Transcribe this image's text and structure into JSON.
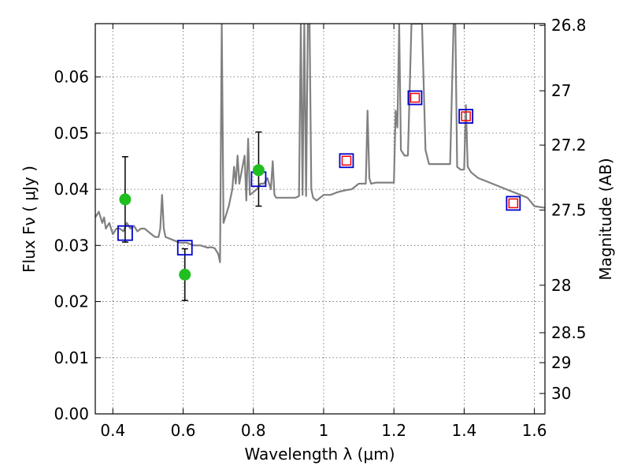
{
  "chart_data": {
    "type": "line",
    "xlabel": "Wavelength  λ (μm)",
    "ylabel": "Flux  Fν  ( μJy )",
    "y2label": "Magnitude (AB)",
    "xlim": [
      0.35,
      1.63
    ],
    "ylim": [
      0.0,
      0.0695
    ],
    "grid": true,
    "x_ticks": [
      0.4,
      0.6,
      0.8,
      1.0,
      1.2,
      1.4,
      1.6
    ],
    "x_tick_labels": [
      "0.4",
      "0.6",
      "0.8",
      "1",
      "1.2",
      "1.4",
      "1.6"
    ],
    "y_ticks": [
      0.0,
      0.01,
      0.02,
      0.03,
      0.04,
      0.05,
      0.06
    ],
    "y_tick_labels": [
      "0.00",
      "0.01",
      "0.02",
      "0.03",
      "0.04",
      "0.05",
      "0.06"
    ],
    "y2_ticks": [
      26.8,
      27.0,
      27.2,
      27.5,
      28.0,
      28.5,
      29.0,
      30.0
    ],
    "y2_tick_labels": [
      "26.8",
      "27",
      "27.2",
      "27.5",
      "28",
      "28.5",
      "29",
      "30"
    ],
    "colors": {
      "spectrum": "#808080",
      "observed": "#1fbf1f",
      "model_blue": "#0000cc",
      "model_red": "#ff0000",
      "errorbar": "#000000"
    },
    "series": [
      {
        "kind": "line",
        "x": [
          0.35,
          0.36,
          0.37,
          0.375,
          0.38,
          0.39,
          0.4,
          0.41,
          0.42,
          0.43,
          0.44,
          0.45,
          0.46,
          0.47,
          0.48,
          0.49,
          0.5,
          0.51,
          0.52,
          0.53,
          0.535,
          0.54,
          0.545,
          0.55,
          0.57,
          0.59,
          0.61,
          0.63,
          0.65,
          0.66,
          0.67,
          0.68,
          0.69,
          0.7,
          0.705,
          0.71,
          0.715,
          0.72,
          0.73,
          0.74,
          0.745,
          0.75,
          0.755,
          0.76,
          0.775,
          0.78,
          0.785,
          0.79,
          0.8,
          0.81,
          0.82,
          0.83,
          0.84,
          0.85,
          0.855,
          0.86,
          0.865,
          0.87,
          0.88,
          0.89,
          0.9,
          0.91,
          0.92,
          0.93,
          0.935,
          0.94,
          0.945,
          0.95,
          0.955,
          0.96,
          0.965,
          0.97,
          0.98,
          1.0,
          1.02,
          1.04,
          1.06,
          1.08,
          1.09,
          1.1,
          1.12,
          1.125,
          1.13,
          1.135,
          1.15,
          1.17,
          1.19,
          1.2,
          1.205,
          1.21,
          1.215,
          1.22,
          1.23,
          1.24,
          1.25,
          1.26,
          1.27,
          1.28,
          1.29,
          1.3,
          1.32,
          1.34,
          1.36,
          1.37,
          1.375,
          1.38,
          1.39,
          1.4,
          1.405,
          1.41,
          1.42,
          1.44,
          1.46,
          1.48,
          1.5,
          1.52,
          1.54,
          1.56,
          1.58,
          1.6,
          1.63
        ],
        "y": [
          0.035,
          0.036,
          0.034,
          0.035,
          0.033,
          0.034,
          0.032,
          0.033,
          0.033,
          0.0325,
          0.034,
          0.033,
          0.0335,
          0.0325,
          0.033,
          0.033,
          0.0325,
          0.032,
          0.0315,
          0.0315,
          0.033,
          0.039,
          0.033,
          0.0315,
          0.031,
          0.0305,
          0.0305,
          0.03,
          0.03,
          0.0298,
          0.0296,
          0.0297,
          0.0295,
          0.0285,
          0.027,
          0.0695,
          0.034,
          0.035,
          0.037,
          0.04,
          0.044,
          0.041,
          0.046,
          0.041,
          0.046,
          0.038,
          0.049,
          0.039,
          0.0395,
          0.04,
          0.041,
          0.041,
          0.042,
          0.04,
          0.045,
          0.039,
          0.0385,
          0.0385,
          0.0385,
          0.0385,
          0.0385,
          0.0385,
          0.0385,
          0.0388,
          0.0695,
          0.039,
          0.0695,
          0.0388,
          0.0695,
          0.0695,
          0.04,
          0.0385,
          0.038,
          0.039,
          0.039,
          0.0395,
          0.0398,
          0.04,
          0.0405,
          0.041,
          0.041,
          0.054,
          0.042,
          0.041,
          0.0412,
          0.0412,
          0.0412,
          0.0412,
          0.054,
          0.051,
          0.0695,
          0.047,
          0.046,
          0.046,
          0.0695,
          0.0695,
          0.0695,
          0.0695,
          0.047,
          0.0445,
          0.0445,
          0.0445,
          0.0445,
          0.0695,
          0.0695,
          0.044,
          0.0435,
          0.0435,
          0.055,
          0.044,
          0.043,
          0.042,
          0.0415,
          0.041,
          0.0405,
          0.04,
          0.0395,
          0.039,
          0.0385,
          0.037,
          0.0367
        ]
      },
      {
        "kind": "errorbar",
        "x": [
          0.435,
          0.605,
          0.815
        ],
        "y": [
          0.0382,
          0.0248,
          0.0434
        ],
        "y_low": [
          0.0306,
          0.0202,
          0.037
        ],
        "y_high": [
          0.0458,
          0.0294,
          0.0502
        ]
      },
      {
        "kind": "square",
        "x": [
          0.435,
          0.605,
          0.815
        ],
        "y": [
          0.0322,
          0.0296,
          0.0418
        ]
      },
      {
        "kind": "square",
        "x": [
          1.065,
          1.26,
          1.405,
          1.54
        ],
        "y": [
          0.0451,
          0.0563,
          0.053,
          0.0375
        ]
      },
      {
        "kind": "square",
        "x": [
          1.065,
          1.26,
          1.405,
          1.54
        ],
        "y": [
          0.0451,
          0.0563,
          0.053,
          0.0375
        ]
      }
    ]
  }
}
